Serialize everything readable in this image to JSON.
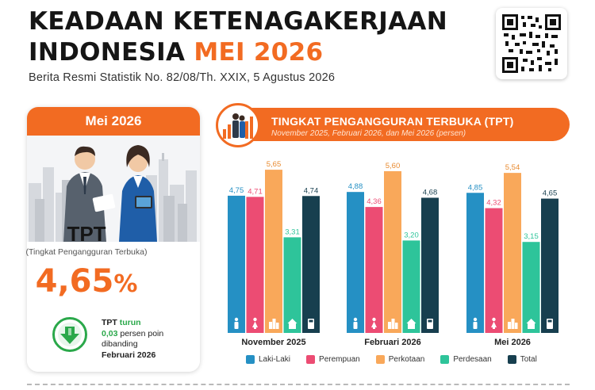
{
  "header": {
    "title_line1": "KEADAAN KETENAGAKERJAAN",
    "title_line2_a": "INDONESIA ",
    "title_line2_b": "MEI 2026",
    "subtitle": "Berita Resmi Statistik No. 82/08/Th. XXIX, 5 Agustus 2026"
  },
  "card": {
    "header": "Mei 2026",
    "tpt_label": "TPT",
    "tpt_full": "(Tingkat Pengangguran Terbuka)",
    "tpt_value": "4,65",
    "tpt_unit": "%",
    "note_tpt": "TPT",
    "note_trend": "turun",
    "note_value": "0,03",
    "note_unit": " persen poin",
    "note_compare": "dibanding",
    "note_period": "Februari 2026"
  },
  "colors": {
    "accent": "#f26b22",
    "green": "#2aa84a",
    "laki": "#2590c4",
    "perempuan": "#ec4c73",
    "perkotaan": "#f9a85a",
    "perdesaan": "#2ec49a",
    "total": "#173f4f"
  },
  "chart_data": {
    "type": "bar",
    "title": "TINGKAT PENGANGGURAN TERBUKA (TPT)",
    "subtitle": "November 2025, Februari 2026, dan Mei 2026 (persen)",
    "categories": [
      "November 2025",
      "Februari 2026",
      "Mei 2026"
    ],
    "series": [
      {
        "name": "Laki-Laki",
        "values": [
          4.75,
          4.88,
          4.85
        ],
        "labels": [
          "4,75",
          "4,88",
          "4,85"
        ],
        "color": "#2590c4",
        "icon": "male-icon"
      },
      {
        "name": "Perempuan",
        "values": [
          4.71,
          4.36,
          4.32
        ],
        "labels": [
          "4,71",
          "4,36",
          "4,32"
        ],
        "color": "#ec4c73",
        "icon": "female-icon"
      },
      {
        "name": "Perkotaan",
        "values": [
          5.65,
          5.6,
          5.54
        ],
        "labels": [
          "5,65",
          "5,60",
          "5,54"
        ],
        "color": "#f9a85a",
        "icon": "city-icon"
      },
      {
        "name": "Perdesaan",
        "values": [
          3.31,
          3.2,
          3.15
        ],
        "labels": [
          "3,31",
          "3,20",
          "3,15"
        ],
        "color": "#2ec49a",
        "icon": "village-icon"
      },
      {
        "name": "Total",
        "values": [
          4.74,
          4.68,
          4.65
        ],
        "labels": [
          "4,74",
          "4,68",
          "4,65"
        ],
        "color": "#173f4f",
        "icon": "calculator-icon"
      }
    ],
    "ylim": [
      0,
      5.9
    ],
    "grid": false,
    "legend_position": "bottom"
  }
}
